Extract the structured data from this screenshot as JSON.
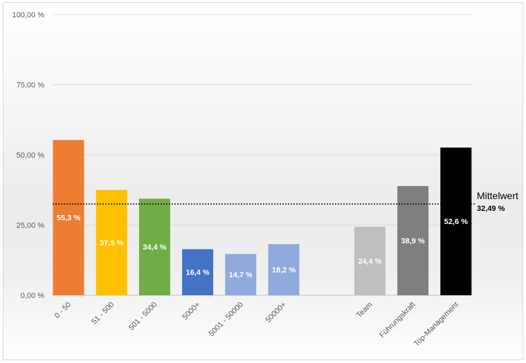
{
  "chart_data": {
    "type": "bar",
    "categories": [
      "0 - 50",
      "51 - 500",
      "501 - 5000",
      "5000+",
      "5001 - 50000",
      "50000+",
      "Team",
      "Führungskraft",
      "Top-Management"
    ],
    "values": [
      55.3,
      37.5,
      34.4,
      16.4,
      14.7,
      18.2,
      24.4,
      38.9,
      52.6
    ],
    "data_labels": [
      "55,3 %",
      "37,5 %",
      "34,4 %",
      "16,4 %",
      "14,7 %",
      "18,2 %",
      "24,4 %",
      "38,9 %",
      "52,6 %"
    ],
    "colors": [
      "#ed7d31",
      "#ffc000",
      "#70ad47",
      "#4472c4",
      "#8faadc",
      "#8faadc",
      "#bfbfbf",
      "#7f7f7f",
      "#000000"
    ],
    "label_colors": [
      "#ffffff",
      "#ffffff",
      "#ffffff",
      "#ffffff",
      "#ffffff",
      "#ffffff",
      "#ffffff",
      "#ffffff",
      "#ffffff"
    ],
    "yticks": [
      0,
      25,
      50,
      75,
      100
    ],
    "ytick_labels": [
      "0,00 %",
      "25,00 %",
      "50,00 %",
      "75,00 %",
      "100,00 %"
    ],
    "ylim": [
      0,
      100
    ],
    "grid": true,
    "reference_line": {
      "label": "Mittelwert",
      "value": 32.49,
      "value_label": "32,49 %"
    },
    "title": "",
    "xlabel": "",
    "ylabel": ""
  }
}
